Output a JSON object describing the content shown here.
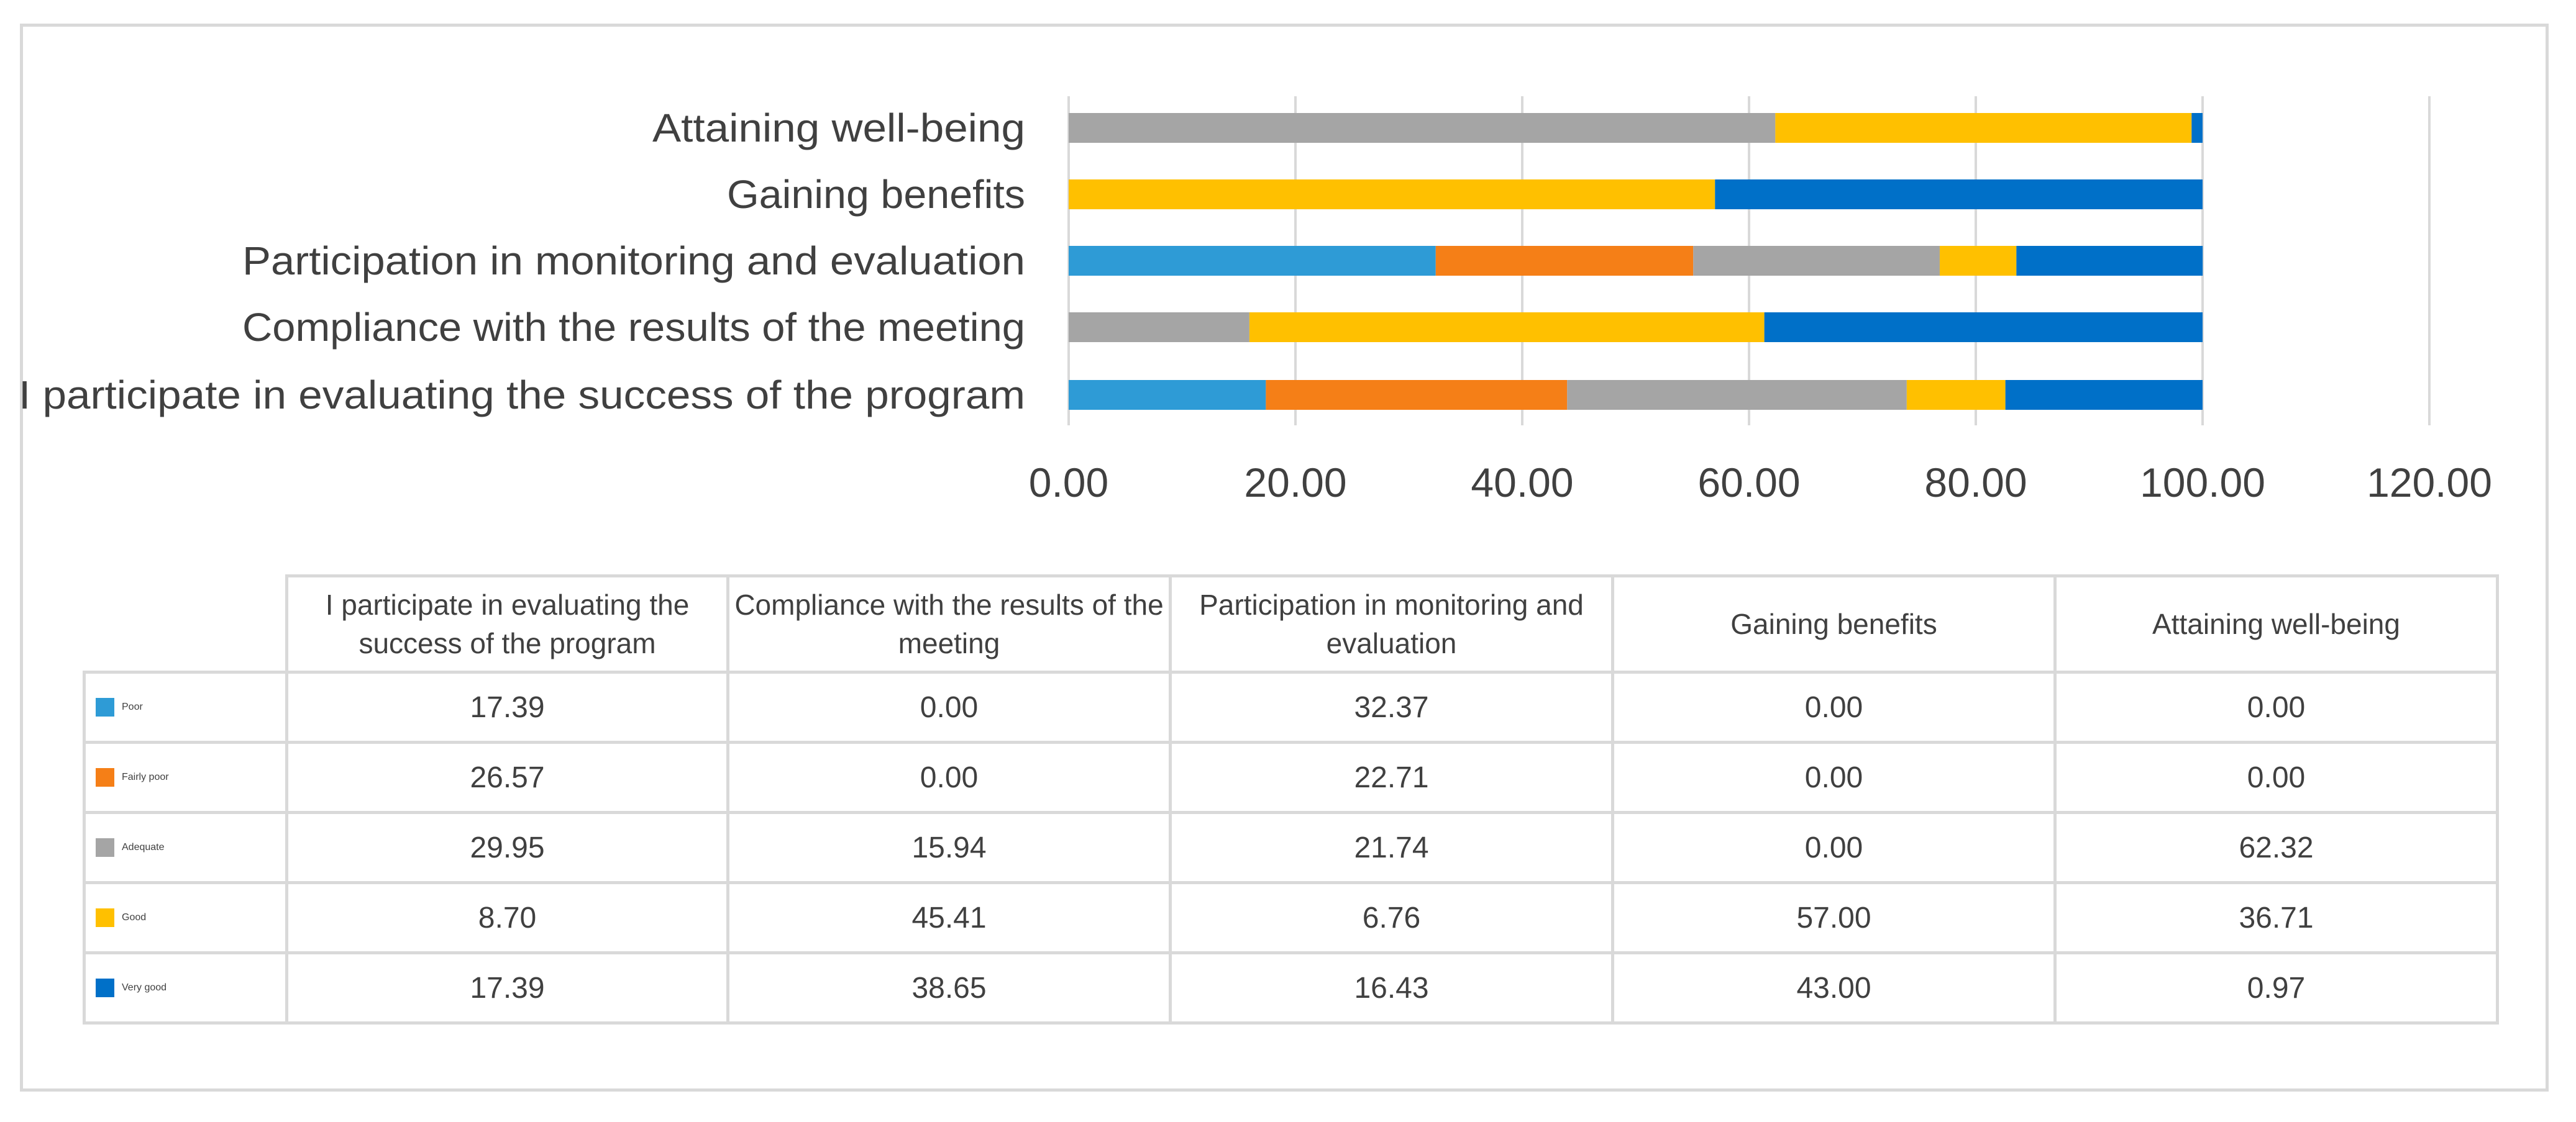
{
  "chart_data": {
    "type": "bar",
    "orientation": "horizontal",
    "stacked": true,
    "categories": [
      "I participate in evaluating the success of the program",
      "Compliance with the results of the meeting",
      "Participation in monitoring and evaluation",
      "Gaining benefits",
      "Attaining well-being"
    ],
    "table_headers": [
      "I participate in evaluating the success of the program",
      "Compliance with the results of the meeting",
      "Participation in monitoring and evaluation",
      "Gaining benefits",
      "Attaining well-being"
    ],
    "series": [
      {
        "name": "Poor",
        "color": "#2e9bd6",
        "values": [
          17.39,
          0.0,
          32.37,
          0.0,
          0.0
        ],
        "labels": [
          "17.39",
          "0.00",
          "32.37",
          "0.00",
          "0.00"
        ]
      },
      {
        "name": "Fairly poor",
        "color": "#f57f17",
        "values": [
          26.57,
          0.0,
          22.71,
          0.0,
          0.0
        ],
        "labels": [
          "26.57",
          "0.00",
          "22.71",
          "0.00",
          "0.00"
        ]
      },
      {
        "name": "Adequate",
        "color": "#a5a5a5",
        "values": [
          29.95,
          15.94,
          21.74,
          0.0,
          62.32
        ],
        "labels": [
          "29.95",
          "15.94",
          "21.74",
          "0.00",
          "62.32"
        ]
      },
      {
        "name": "Good",
        "color": "#ffc000",
        "values": [
          8.7,
          45.41,
          6.76,
          57.0,
          36.71
        ],
        "labels": [
          "8.70",
          "45.41",
          "6.76",
          "57.00",
          "36.71"
        ]
      },
      {
        "name": "Very good",
        "color": "#0070c8",
        "values": [
          17.39,
          38.65,
          16.43,
          43.0,
          0.97
        ],
        "labels": [
          "17.39",
          "38.65",
          "16.43",
          "43.00",
          "0.97"
        ]
      }
    ],
    "xlim": [
      0,
      120
    ],
    "xticks": [
      0,
      20,
      40,
      60,
      80,
      100,
      120
    ],
    "xtick_labels": [
      "0.00",
      "20.00",
      "40.00",
      "60.00",
      "80.00",
      "100.00",
      "120.00"
    ],
    "grid": true,
    "title": "",
    "xlabel": "",
    "ylabel": "",
    "legend": "data-table"
  }
}
